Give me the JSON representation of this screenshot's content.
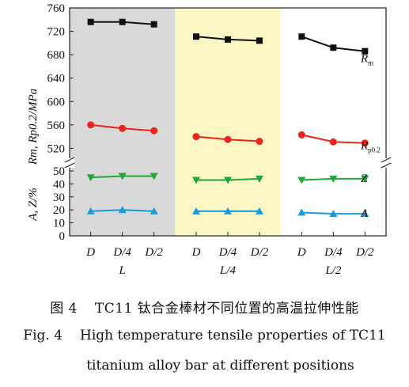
{
  "chart_data": {
    "type": "line",
    "top_panel": {
      "ylabel": "Rm, Rp0.2/MPa",
      "ylim": [
        500,
        760
      ],
      "yticks": [
        520,
        560,
        600,
        640,
        680,
        720,
        760
      ]
    },
    "bottom_panel": {
      "ylabel": "A, Z/%",
      "ylim": [
        0,
        50
      ],
      "yticks": [
        0,
        10,
        20,
        30,
        40,
        50
      ]
    },
    "groups": [
      {
        "label": "L",
        "positions": [
          "D",
          "D/4",
          "D/2"
        ],
        "shade": "#d9d9d9"
      },
      {
        "label": "L/4",
        "positions": [
          "D",
          "D/4",
          "D/2"
        ],
        "shade": "#fbf6c4"
      },
      {
        "label": "L/2",
        "positions": [
          "D",
          "D/4",
          "D/2"
        ],
        "shade": "#ffffff"
      }
    ],
    "series": [
      {
        "name": "Rm",
        "label_main": "R",
        "label_sub": "m",
        "panel": "top",
        "color": "#111111",
        "marker": "square",
        "values": [
          [
            736,
            736,
            732
          ],
          [
            711,
            706,
            704
          ],
          [
            711,
            692,
            686
          ]
        ]
      },
      {
        "name": "Rp0.2",
        "label_main": "R",
        "label_sub": "p0.2",
        "panel": "top",
        "color": "#e8261c",
        "marker": "circle",
        "values": [
          [
            560,
            554,
            550
          ],
          [
            540,
            535,
            532
          ],
          [
            543,
            531,
            529
          ]
        ]
      },
      {
        "name": "Z",
        "label_main": "Z",
        "label_sub": "",
        "panel": "bottom",
        "color": "#22a83a",
        "marker": "triangle-down",
        "values": [
          [
            45,
            46,
            46
          ],
          [
            43,
            43,
            44
          ],
          [
            43,
            44,
            44
          ]
        ]
      },
      {
        "name": "A",
        "label_main": "A",
        "label_sub": "",
        "panel": "bottom",
        "color": "#1c9bd8",
        "marker": "triangle-up",
        "values": [
          [
            19,
            20,
            19
          ],
          [
            19,
            19,
            19
          ],
          [
            18,
            17,
            17
          ]
        ]
      }
    ]
  },
  "caption": {
    "cn_num": "图 4",
    "cn_text": "TC11 钛合金棒材不同位置的高温拉伸性能",
    "en_num": "Fig. 4",
    "en_text_1": "High temperature tensile properties of TC11",
    "en_text_2": "titanium alloy bar at different positions"
  }
}
